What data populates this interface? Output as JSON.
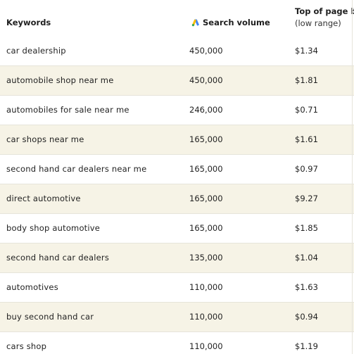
{
  "header": {
    "keywords_label": "Keywords",
    "volume_label": "Search volume",
    "volume_icon": "google-ads-icon",
    "bid_label": "Top of page bi",
    "bid_sublabel": "(low range)"
  },
  "colors": {
    "alt_row": "#f6f3e6",
    "ads_icon_green": "#34a853",
    "ads_icon_blue": "#4285f4",
    "ads_icon_yellow": "#fbbc04"
  },
  "rows": [
    {
      "keyword": "car dealership",
      "volume": "450,000",
      "bid": "$1.34"
    },
    {
      "keyword": "automobile shop near me",
      "volume": "450,000",
      "bid": "$1.81"
    },
    {
      "keyword": "automobiles for sale near me",
      "volume": "246,000",
      "bid": "$0.71"
    },
    {
      "keyword": "car shops near me",
      "volume": "165,000",
      "bid": "$1.61"
    },
    {
      "keyword": "second hand car dealers near me",
      "volume": "165,000",
      "bid": "$0.97"
    },
    {
      "keyword": "direct automotive",
      "volume": "165,000",
      "bid": "$9.27"
    },
    {
      "keyword": "body shop automotive",
      "volume": "165,000",
      "bid": "$1.85"
    },
    {
      "keyword": "second hand car dealers",
      "volume": "135,000",
      "bid": "$1.04"
    },
    {
      "keyword": "automotives",
      "volume": "110,000",
      "bid": "$1.63"
    },
    {
      "keyword": "buy second hand car",
      "volume": "110,000",
      "bid": "$0.94"
    },
    {
      "keyword": "cars shop",
      "volume": "110,000",
      "bid": "$1.19"
    }
  ]
}
